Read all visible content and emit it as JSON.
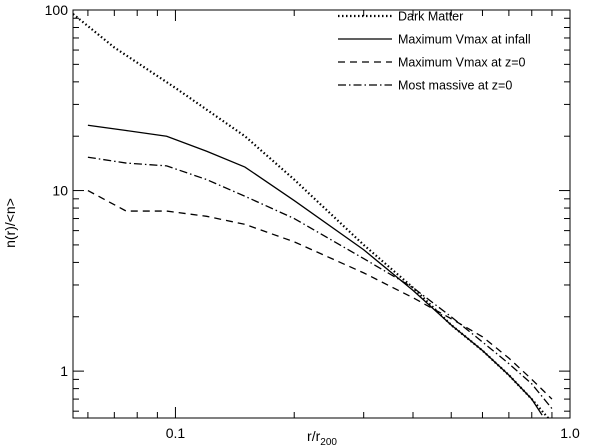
{
  "chart_data": {
    "type": "line",
    "title": "",
    "xlabel_main": "r/r",
    "xlabel_sub": "200",
    "ylabel": "n(r)/<n>",
    "xscale": "log",
    "yscale": "log",
    "xlim": [
      0.055,
      1.0
    ],
    "ylim": [
      0.55,
      100
    ],
    "xticks": [
      {
        "value": 0.1,
        "label": "0.1"
      },
      {
        "value": 1.0,
        "label": "1.0"
      }
    ],
    "yticks": [
      {
        "value": 1,
        "label": "1"
      },
      {
        "value": 10,
        "label": "10"
      },
      {
        "value": 100,
        "label": "100"
      }
    ],
    "legend_position": "top-right",
    "series": [
      {
        "name": "Dark Matter",
        "style": "dotted",
        "x": [
          0.055,
          0.07,
          0.1,
          0.15,
          0.2,
          0.3,
          0.4,
          0.5,
          0.6,
          0.7,
          0.8,
          0.9
        ],
        "y": [
          95,
          62,
          37,
          20,
          11.5,
          5.0,
          2.9,
          1.8,
          1.3,
          0.95,
          0.7,
          0.52
        ]
      },
      {
        "name": "Maximum Vmax at infall",
        "style": "solid",
        "x": [
          0.06,
          0.075,
          0.095,
          0.12,
          0.15,
          0.2,
          0.3,
          0.4,
          0.5,
          0.6,
          0.7,
          0.8,
          0.85
        ],
        "y": [
          23,
          21.5,
          20,
          16.5,
          13.5,
          8.8,
          4.7,
          2.8,
          1.8,
          1.3,
          0.95,
          0.7,
          0.57
        ]
      },
      {
        "name": "Maximum Vmax at z=0",
        "style": "dashed",
        "x": [
          0.06,
          0.075,
          0.095,
          0.12,
          0.15,
          0.2,
          0.3,
          0.4,
          0.5,
          0.6,
          0.7,
          0.8,
          0.9
        ],
        "y": [
          10,
          7.7,
          7.7,
          7.2,
          6.5,
          5.2,
          3.5,
          2.55,
          1.95,
          1.55,
          1.18,
          0.9,
          0.7
        ]
      },
      {
        "name": "Most massive at z=0",
        "style": "dashdot",
        "x": [
          0.06,
          0.075,
          0.095,
          0.12,
          0.15,
          0.2,
          0.3,
          0.4,
          0.5,
          0.6,
          0.7,
          0.8,
          0.9
        ],
        "y": [
          15.3,
          14.2,
          13.7,
          11.5,
          9.3,
          7.0,
          4.2,
          2.9,
          2.0,
          1.45,
          1.1,
          0.85,
          0.62
        ]
      }
    ]
  }
}
